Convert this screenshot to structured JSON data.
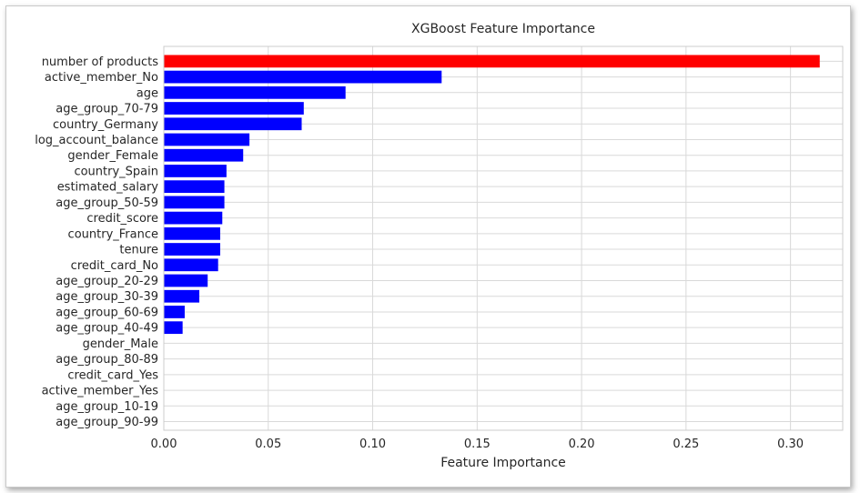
{
  "chart_data": {
    "type": "bar",
    "orientation": "horizontal",
    "title": "XGBoost Feature Importance",
    "xlabel": "Feature Importance",
    "ylabel": "",
    "xlim": [
      0.0,
      0.325
    ],
    "xticks": [
      0.0,
      0.05,
      0.1,
      0.15,
      0.2,
      0.25,
      0.3
    ],
    "xtick_labels": [
      "0.00",
      "0.05",
      "0.10",
      "0.15",
      "0.20",
      "0.25",
      "0.30"
    ],
    "grid": true,
    "categories": [
      "number of products",
      "active_member_No",
      "age",
      "age_group_70-79",
      "country_Germany",
      "log_account_balance",
      "gender_Female",
      "country_Spain",
      "estimated_salary",
      "age_group_50-59",
      "credit_score",
      "country_France",
      "tenure",
      "credit_card_No",
      "age_group_20-29",
      "age_group_30-39",
      "age_group_60-69",
      "age_group_40-49",
      "gender_Male",
      "age_group_80-89",
      "credit_card_Yes",
      "active_member_Yes",
      "age_group_10-19",
      "age_group_90-99"
    ],
    "values": [
      0.314,
      0.133,
      0.087,
      0.067,
      0.066,
      0.041,
      0.038,
      0.03,
      0.029,
      0.029,
      0.028,
      0.027,
      0.027,
      0.026,
      0.021,
      0.017,
      0.01,
      0.009,
      0.0,
      0.0,
      0.0,
      0.0,
      0.0,
      0.0
    ],
    "colors": {
      "top_bar": "#ff0000",
      "bars": "#0000ff",
      "grid": "#d9d9d9",
      "frame": "#cccccc",
      "text": "#262626"
    }
  }
}
